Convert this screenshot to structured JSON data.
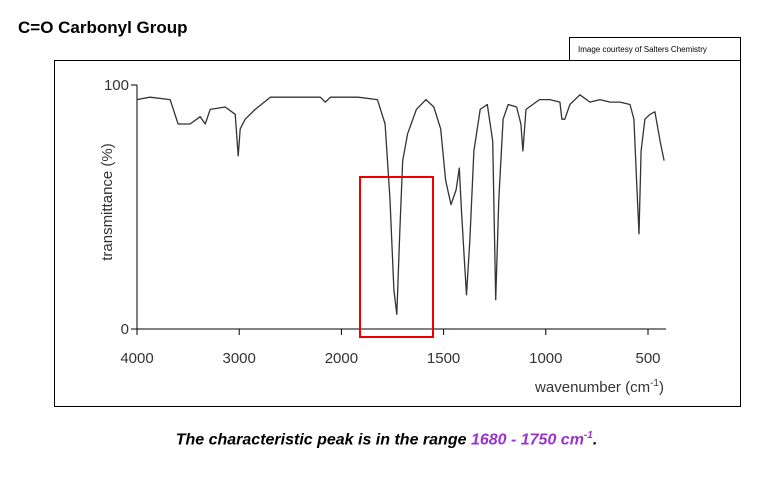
{
  "chart_data": {
    "type": "line",
    "title": "C=O Carbonyl Group",
    "source": "Image courtesy of Salters Chemistry",
    "xlabel": "wavenumber (cm",
    "xlabel_sup": "-1",
    "xlabel_end": ")",
    "ylabel": "transmittance (%)",
    "x": [
      4000,
      3873,
      3676,
      3598,
      3480,
      3382,
      3333,
      3284,
      3137,
      3039,
      3010,
      2990,
      2941,
      2843,
      2696,
      2402,
      2206,
      2157,
      2108,
      1919,
      1824,
      1786,
      1762,
      1743,
      1729,
      1714,
      1700,
      1676,
      1633,
      1586,
      1548,
      1514,
      1490,
      1464,
      1439,
      1423,
      1413,
      1398,
      1388,
      1372,
      1352,
      1321,
      1286,
      1260,
      1245,
      1230,
      1209,
      1184,
      1143,
      1122,
      1112,
      1097,
      1031,
      980,
      931,
      921,
      907,
      882,
      833,
      784,
      735,
      686,
      637,
      588,
      569,
      554,
      544,
      534,
      515,
      490,
      466,
      441,
      421
    ],
    "values": [
      94,
      95,
      94,
      84,
      84,
      87,
      84,
      90,
      91,
      88,
      71,
      82,
      86,
      90,
      95,
      95,
      95,
      93,
      95,
      95,
      94,
      84,
      53,
      16,
      6,
      41,
      69,
      80,
      90,
      94,
      91,
      82,
      61,
      51,
      57,
      66,
      49,
      28,
      14,
      36,
      73,
      90,
      92,
      77,
      12,
      53,
      86,
      92,
      91,
      84,
      73,
      90,
      94,
      94,
      93,
      86,
      86,
      92,
      96,
      93,
      94,
      93,
      93,
      92,
      86,
      57,
      39,
      73,
      86,
      88,
      89,
      77,
      69
    ],
    "color": "#333333",
    "xlim": [
      4000,
      421
    ],
    "ylim": [
      0,
      100
    ],
    "xticks": [
      4000,
      3000,
      2000,
      1500,
      1000,
      500
    ],
    "yticks": [
      0,
      100
    ],
    "caption": {
      "text": "The characteristic peak is in the range ",
      "range": "1680 - 1750 cm",
      "sup": "-1",
      "end": "."
    }
  }
}
